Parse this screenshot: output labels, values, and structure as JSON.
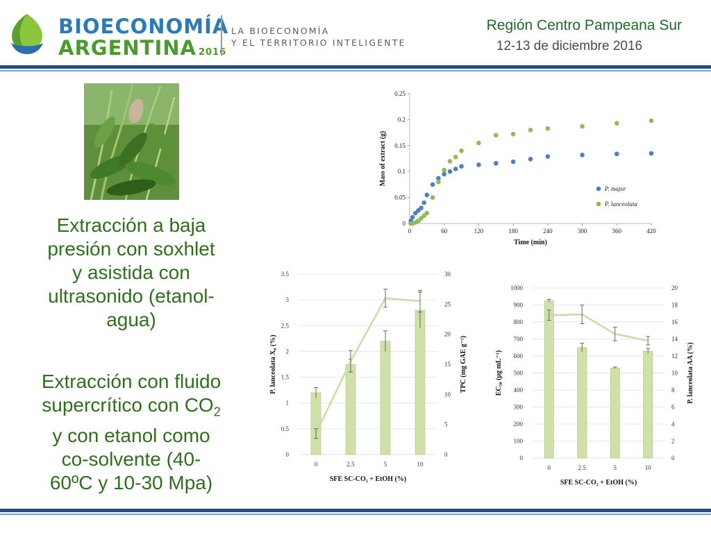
{
  "header": {
    "logo_line1": "BIOECONOMÍA",
    "logo_line2": "ARGENTINA",
    "logo_year": "2016",
    "tagline_1": "LA BIOECONOMÍA",
    "tagline_2": "Y EL TERRITORIO INTELIGENTE",
    "region": "Región Centro Pampeana Sur",
    "date": "12-13 de diciembre 2016"
  },
  "content": {
    "paragraph1": [
      "Extracción a baja",
      "presión con soxhlet",
      "y  asistida con",
      "ultrasonido (etanol-",
      "agua)"
    ],
    "p2_line1": "Extracción con fluido",
    "p2_line2_pre": "supercrítico con CO",
    "p2_line2_sub": "2",
    "p2_rest": [
      "y con etanol como",
      "co-solvente (40-",
      "60ºC y 10-30 Mpa)"
    ]
  },
  "colors": {
    "green_dark": "#2e6f1d",
    "navy": "#1e4f86",
    "series_major": "#4f7fc0",
    "series_lanceolata": "#8fba5a",
    "bar_fill": "#cfe0a8"
  },
  "chart_data": [
    {
      "type": "scatter",
      "xlabel": "Time (min)",
      "ylabel": "Mass of extract (g)",
      "xlim": [
        0,
        420
      ],
      "ylim": [
        0,
        0.25
      ],
      "xticks": [
        0,
        60,
        120,
        180,
        240,
        300,
        360,
        420
      ],
      "yticks": [
        0,
        0.05,
        0.1,
        0.15,
        0.2,
        0.25
      ],
      "ytick_labels": [
        "0",
        "0.05",
        "0.1",
        "0.15",
        "0.2",
        "0.25"
      ],
      "legend_position": "bottom-right",
      "series": [
        {
          "name": "P. major",
          "x": [
            2,
            5,
            10,
            15,
            20,
            25,
            30,
            40,
            50,
            60,
            70,
            80,
            90,
            120,
            150,
            180,
            210,
            240,
            300,
            360,
            420
          ],
          "y": [
            0.005,
            0.012,
            0.02,
            0.025,
            0.03,
            0.04,
            0.055,
            0.075,
            0.087,
            0.095,
            0.1,
            0.105,
            0.11,
            0.113,
            0.116,
            0.119,
            0.124,
            0.129,
            0.132,
            0.134,
            0.135
          ]
        },
        {
          "name": "P. lanceolata",
          "x": [
            2,
            5,
            10,
            15,
            20,
            25,
            30,
            40,
            50,
            60,
            70,
            80,
            90,
            120,
            150,
            180,
            210,
            240,
            300,
            360,
            420
          ],
          "y": [
            0.0,
            0.0,
            0.002,
            0.005,
            0.01,
            0.015,
            0.02,
            0.05,
            0.08,
            0.103,
            0.12,
            0.128,
            0.14,
            0.155,
            0.17,
            0.172,
            0.18,
            0.183,
            0.187,
            0.193,
            0.198
          ]
        }
      ]
    },
    {
      "type": "bar",
      "xlabel": "SFE SC-CO₂ + EtOH (%)",
      "ylabel_left": "P. lanceolata X₀ (%)",
      "ylabel_right": "TPC (mg GAE g⁻¹)",
      "categories": [
        "0",
        "2.5",
        "5",
        "10"
      ],
      "bars": {
        "values": [
          1.2,
          1.75,
          2.2,
          2.8
        ],
        "errors": [
          0.1,
          0.1,
          0.2,
          0.35
        ]
      },
      "line": {
        "values": [
          3.5,
          15.5,
          26,
          25.5
        ],
        "errors": [
          0.8,
          1.8,
          1.5,
          1.8
        ]
      },
      "ylim_left": [
        0,
        3.5
      ],
      "ylim_right": [
        0,
        30
      ],
      "yticks_left": [
        "0",
        "0.5",
        "1",
        "1.5",
        "2",
        "2.5",
        "3",
        "3.5"
      ],
      "yticks_right": [
        "0",
        "5",
        "10",
        "15",
        "20",
        "25",
        "30"
      ]
    },
    {
      "type": "bar",
      "xlabel": "SFE SC-CO₂ + EtOH (%)",
      "ylabel_left": "EC₅₀ (µg mL⁻¹)",
      "ylabel_right": "P. lanceolata AA (%)",
      "categories": [
        "0",
        "2.5",
        "5",
        "10"
      ],
      "bars": {
        "values": [
          925,
          650,
          530,
          630
        ],
        "errors": [
          8,
          25,
          5,
          15
        ]
      },
      "line": {
        "values": [
          16.8,
          16.9,
          14.6,
          13.8
        ],
        "errors": [
          0.6,
          1.1,
          0.8,
          0.5
        ]
      },
      "ylim_left": [
        0,
        1000
      ],
      "ylim_right": [
        0,
        20
      ],
      "yticks_left": [
        "0",
        "100",
        "200",
        "300",
        "400",
        "500",
        "600",
        "700",
        "800",
        "900",
        "1000"
      ],
      "yticks_right": [
        "0",
        "2",
        "4",
        "6",
        "8",
        "10",
        "12",
        "14",
        "16",
        "18",
        "20"
      ]
    }
  ]
}
